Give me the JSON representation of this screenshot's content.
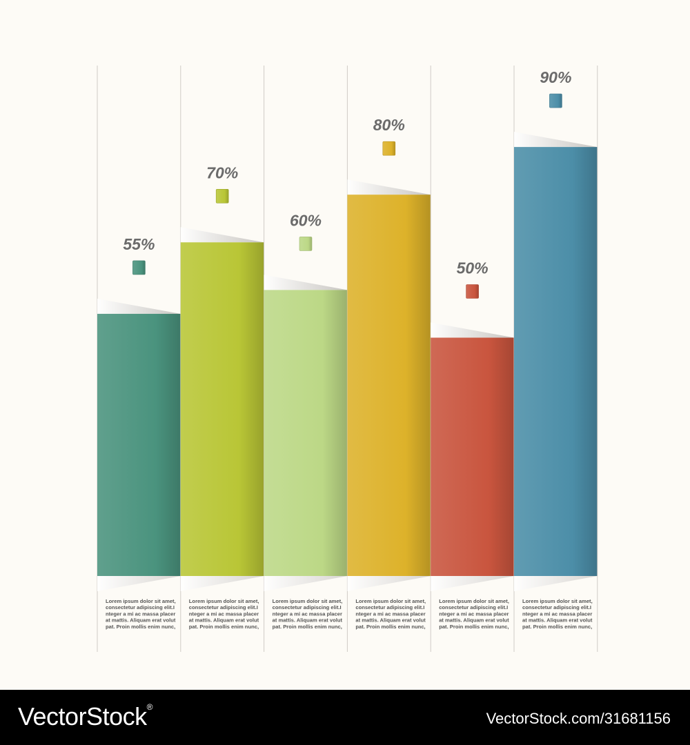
{
  "chart_data": {
    "type": "bar",
    "categories": [
      "",
      "",
      "",
      "",
      "",
      ""
    ],
    "values": [
      55,
      70,
      60,
      80,
      50,
      90
    ],
    "value_labels": [
      "55%",
      "70%",
      "60%",
      "80%",
      "50%",
      "90%"
    ],
    "colors": [
      "#4a937e",
      "#b9c636",
      "#bcd886",
      "#ddb22a",
      "#c9553e",
      "#4c8ea8"
    ],
    "descriptions": [
      [
        "Lorem ipsum dolor sit amet,",
        "consectetur adipiscing elit.I",
        "nteger a mi ac massa placer",
        "at mattis. Aliquam erat volut",
        "pat. Proin mollis enim nunc,"
      ],
      [
        "Lorem ipsum dolor sit amet,",
        "consectetur adipiscing elit.I",
        "nteger a mi ac massa placer",
        "at mattis. Aliquam erat volut",
        "pat. Proin mollis enim nunc,"
      ],
      [
        "Lorem ipsum dolor sit amet,",
        "consectetur adipiscing elit.I",
        "nteger a mi ac massa placer",
        "at mattis. Aliquam erat volut",
        "pat. Proin mollis enim nunc,"
      ],
      [
        "Lorem ipsum dolor sit amet,",
        "consectetur adipiscing elit.I",
        "nteger a mi ac massa placer",
        "at mattis. Aliquam erat volut",
        "pat. Proin mollis enim nunc,"
      ],
      [
        "Lorem ipsum dolor sit amet,",
        "consectetur adipiscing elit.I",
        "nteger a mi ac massa placer",
        "at mattis. Aliquam erat volut",
        "pat. Proin mollis enim nunc,"
      ],
      [
        "Lorem ipsum dolor sit amet,",
        "consectetur adipiscing elit.I",
        "nteger a mi ac massa placer",
        "at mattis. Aliquam erat volut",
        "pat. Proin mollis enim nunc,"
      ]
    ],
    "ylim": [
      0,
      100
    ],
    "grid": false,
    "legend": "none"
  },
  "footer": {
    "brand": "VectorStock",
    "registered_mark": "®",
    "image_ref": "VectorStock.com/31681156"
  }
}
